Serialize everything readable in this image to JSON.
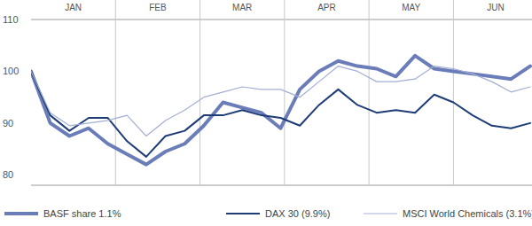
{
  "chart_data": {
    "type": "line",
    "x": [
      0,
      1,
      2,
      3,
      4,
      5,
      6,
      7,
      8,
      9,
      10,
      11,
      12,
      13,
      14,
      15,
      16,
      17,
      18,
      19,
      20,
      21,
      22,
      23,
      24,
      25,
      26
    ],
    "xlim": [
      0,
      26
    ],
    "xticks": [
      {
        "value": 2.2,
        "label": "JAN"
      },
      {
        "value": 6.6,
        "label": "FEB"
      },
      {
        "value": 11,
        "label": "MAR"
      },
      {
        "value": 15.4,
        "label": "APR"
      },
      {
        "value": 19.8,
        "label": "MAY"
      },
      {
        "value": 24.2,
        "label": "JUN"
      }
    ],
    "ylim": [
      78,
      110
    ],
    "yticks": [
      80,
      90,
      100,
      110
    ],
    "grid": false,
    "legend": "bottom",
    "series": [
      {
        "name": "BASF share 1.1%",
        "color": "#6b7db8",
        "line_style": "thick",
        "values": [
          100,
          90,
          87.5,
          89,
          86,
          84,
          82,
          84.5,
          86,
          89.5,
          94,
          93,
          92,
          89,
          96.5,
          100,
          102,
          101,
          100.5,
          99,
          103,
          100.5,
          100,
          99.5,
          99,
          98.5,
          101
        ]
      },
      {
        "name": "DAX 30 (9.9%)",
        "color": "#1e3d78",
        "line_style": "medium",
        "values": [
          100,
          91.5,
          88.5,
          91,
          91,
          86.5,
          83.5,
          87.5,
          88.5,
          91.5,
          91.5,
          92.5,
          91.5,
          91,
          89.5,
          93.5,
          96.5,
          93.5,
          92,
          92.5,
          92,
          95.5,
          94,
          91.5,
          89.5,
          89,
          90
        ]
      },
      {
        "name": "MSCI World Chemicals (3.1%)",
        "color": "#a3aed3",
        "line_style": "thin",
        "values": [
          100,
          92,
          89.5,
          90,
          90.5,
          91.5,
          87.5,
          90.5,
          92.5,
          95,
          96,
          97,
          96.5,
          96.5,
          95,
          98,
          101,
          100,
          98,
          98,
          98.5,
          101,
          100.5,
          99.5,
          98,
          96,
          97
        ]
      }
    ]
  }
}
